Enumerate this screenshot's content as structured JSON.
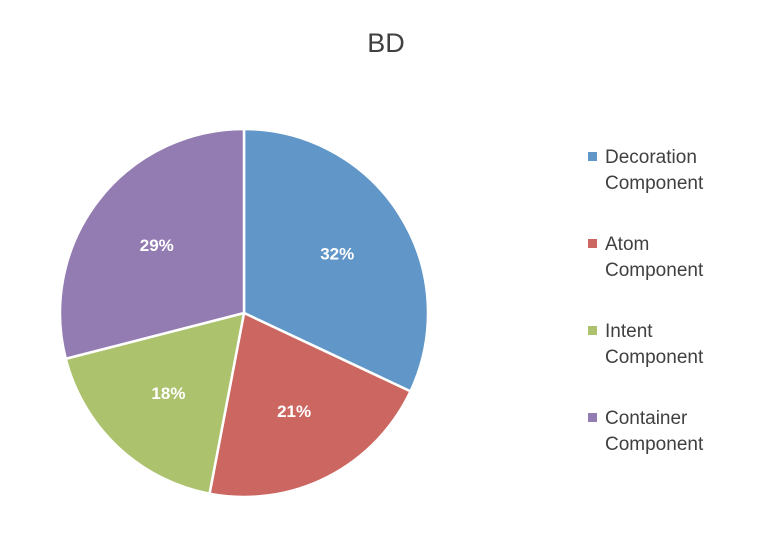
{
  "chart_data": {
    "type": "pie",
    "title": "BD",
    "legend_position": "right",
    "categories": [
      "Decoration Component",
      "Atom Component",
      "Intent Component",
      "Container Component"
    ],
    "values": [
      32,
      21,
      18,
      29
    ],
    "labels": [
      "32%",
      "21%",
      "18%",
      "29%"
    ],
    "colors": [
      "#6196C8",
      "#CC6661",
      "#ACC26D",
      "#937CB2"
    ],
    "legend": [
      {
        "line1": "Decoration",
        "line2": "Component"
      },
      {
        "line1": "Atom",
        "line2": "Component"
      },
      {
        "line1": "Intent",
        "line2": "Component"
      },
      {
        "line1": "Container",
        "line2": "Component"
      }
    ]
  }
}
